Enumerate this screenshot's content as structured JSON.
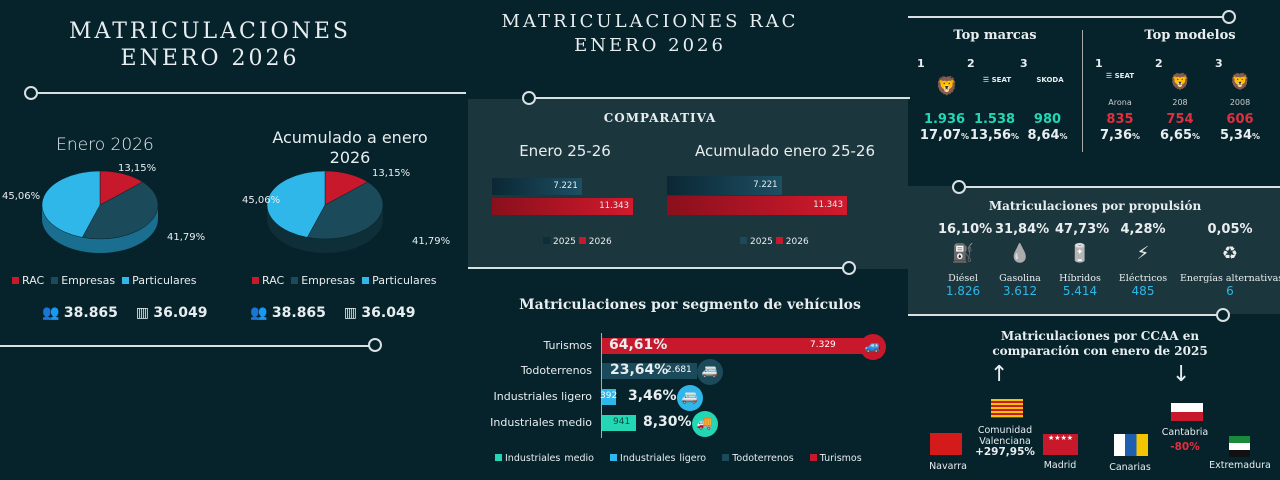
{
  "left": {
    "title_line1": "MATRICULACIONES",
    "title_line2": "ENERO 2026",
    "pies": [
      {
        "title": "Enero 2026",
        "labels": {
          "rac": "13,15%",
          "empresas": "41,79%",
          "particulares": "45,06%"
        },
        "people_total": "38.865",
        "building_total": "36.049"
      },
      {
        "title": "Acumulado a enero 2026",
        "labels": {
          "rac": "13,15%",
          "empresas": "41,79%",
          "particulares": "45,06%"
        },
        "people_total": "38.865",
        "building_total": "36.049"
      }
    ],
    "legend": [
      "RAC",
      "Empresas",
      "Particulares"
    ],
    "colors": {
      "rac": "#c8192c",
      "empresas": "#1b4a5a",
      "particulares": "#2fb7ea"
    }
  },
  "chart_data": [
    {
      "type": "pie",
      "title": "Enero 2026",
      "categories": [
        "RAC",
        "Empresas",
        "Particulares"
      ],
      "values": [
        13.15,
        41.79,
        45.06
      ]
    },
    {
      "type": "pie",
      "title": "Acumulado a enero 2026",
      "categories": [
        "RAC",
        "Empresas",
        "Particulares"
      ],
      "values": [
        13.15,
        41.79,
        45.06
      ]
    },
    {
      "type": "bar",
      "title": "Enero 25-26",
      "categories": [
        "2025",
        "2026"
      ],
      "values": [
        7221,
        11343
      ],
      "labels": [
        "7.221",
        "11.343"
      ]
    },
    {
      "type": "bar",
      "title": "Acumulado enero 25-26",
      "categories": [
        "2025",
        "2026"
      ],
      "values": [
        7221,
        11343
      ],
      "labels": [
        "7.221",
        "11.343"
      ]
    },
    {
      "type": "bar",
      "title": "Matriculaciones por segmento de vehículos",
      "categories": [
        "Turismos",
        "Todoterrenos",
        "Industriales ligero",
        "Industriales medio"
      ],
      "values": [
        7329,
        2681,
        392,
        941
      ],
      "labels": [
        "7.329",
        "2.681",
        "392",
        "941"
      ],
      "percents": [
        "64,61%",
        "23,64%",
        "3,46%",
        "8,30%"
      ],
      "legend": [
        "Industriales medio",
        "Industriales ligero",
        "Todoterrenos",
        "Turismos"
      ]
    }
  ],
  "rac": {
    "title_line1": "MATRICULACIONES RAC",
    "title_line2": "ENERO 2026",
    "comparativa": "COMPARATIVA",
    "legend_2025": "2025",
    "legend_2026": "2026"
  },
  "top": {
    "marcas_title": "Top marcas",
    "modelos_title": "Top modelos",
    "marcas": [
      {
        "rank": "1",
        "brand": "PEUGEOT",
        "units": "1.936",
        "pct": "17,07",
        "pct_sign": "%"
      },
      {
        "rank": "2",
        "brand": "SEAT",
        "units": "1.538",
        "pct": "13,56",
        "pct_sign": "%"
      },
      {
        "rank": "3",
        "brand": "SKODA",
        "units": "980",
        "pct": "8,64",
        "pct_sign": "%"
      }
    ],
    "modelos": [
      {
        "rank": "1",
        "brand": "SEAT",
        "model": "Arona",
        "units": "835",
        "pct": "7,36",
        "pct_sign": "%"
      },
      {
        "rank": "2",
        "brand": "PEUGEOT",
        "model": "208",
        "units": "754",
        "pct": "6,65",
        "pct_sign": "%"
      },
      {
        "rank": "3",
        "brand": "PEUGEOT",
        "model": "2008",
        "units": "606",
        "pct": "5,34",
        "pct_sign": "%"
      }
    ]
  },
  "propulsion": {
    "title": "Matriculaciones por propulsión",
    "items": [
      {
        "pct": "16,10%",
        "label": "Diésel",
        "units": "1.826"
      },
      {
        "pct": "31,84%",
        "label": "Gasolina",
        "units": "3.612"
      },
      {
        "pct": "47,73%",
        "label": "Híbridos",
        "units": "5.414"
      },
      {
        "pct": "4,28%",
        "label": "Eléctricos",
        "units": "485"
      },
      {
        "pct": "0,05%",
        "label": "Energías alternativas",
        "units": "6"
      }
    ]
  },
  "ccaa": {
    "title_line1": "Matriculaciones por CCAA en",
    "title_line2": "comparación con enero de 2025",
    "valenciana": {
      "name_line1": "Comunidad",
      "name_line2": "Valenciana",
      "value": "+297,95%"
    },
    "cantabria": {
      "name": "Cantabria",
      "value": "-80%"
    },
    "navarra": {
      "name": "Navarra"
    },
    "madrid": {
      "name": "Madrid"
    },
    "canarias": {
      "name": "Canarias"
    },
    "extremadura": {
      "name": "Extremadura"
    }
  }
}
